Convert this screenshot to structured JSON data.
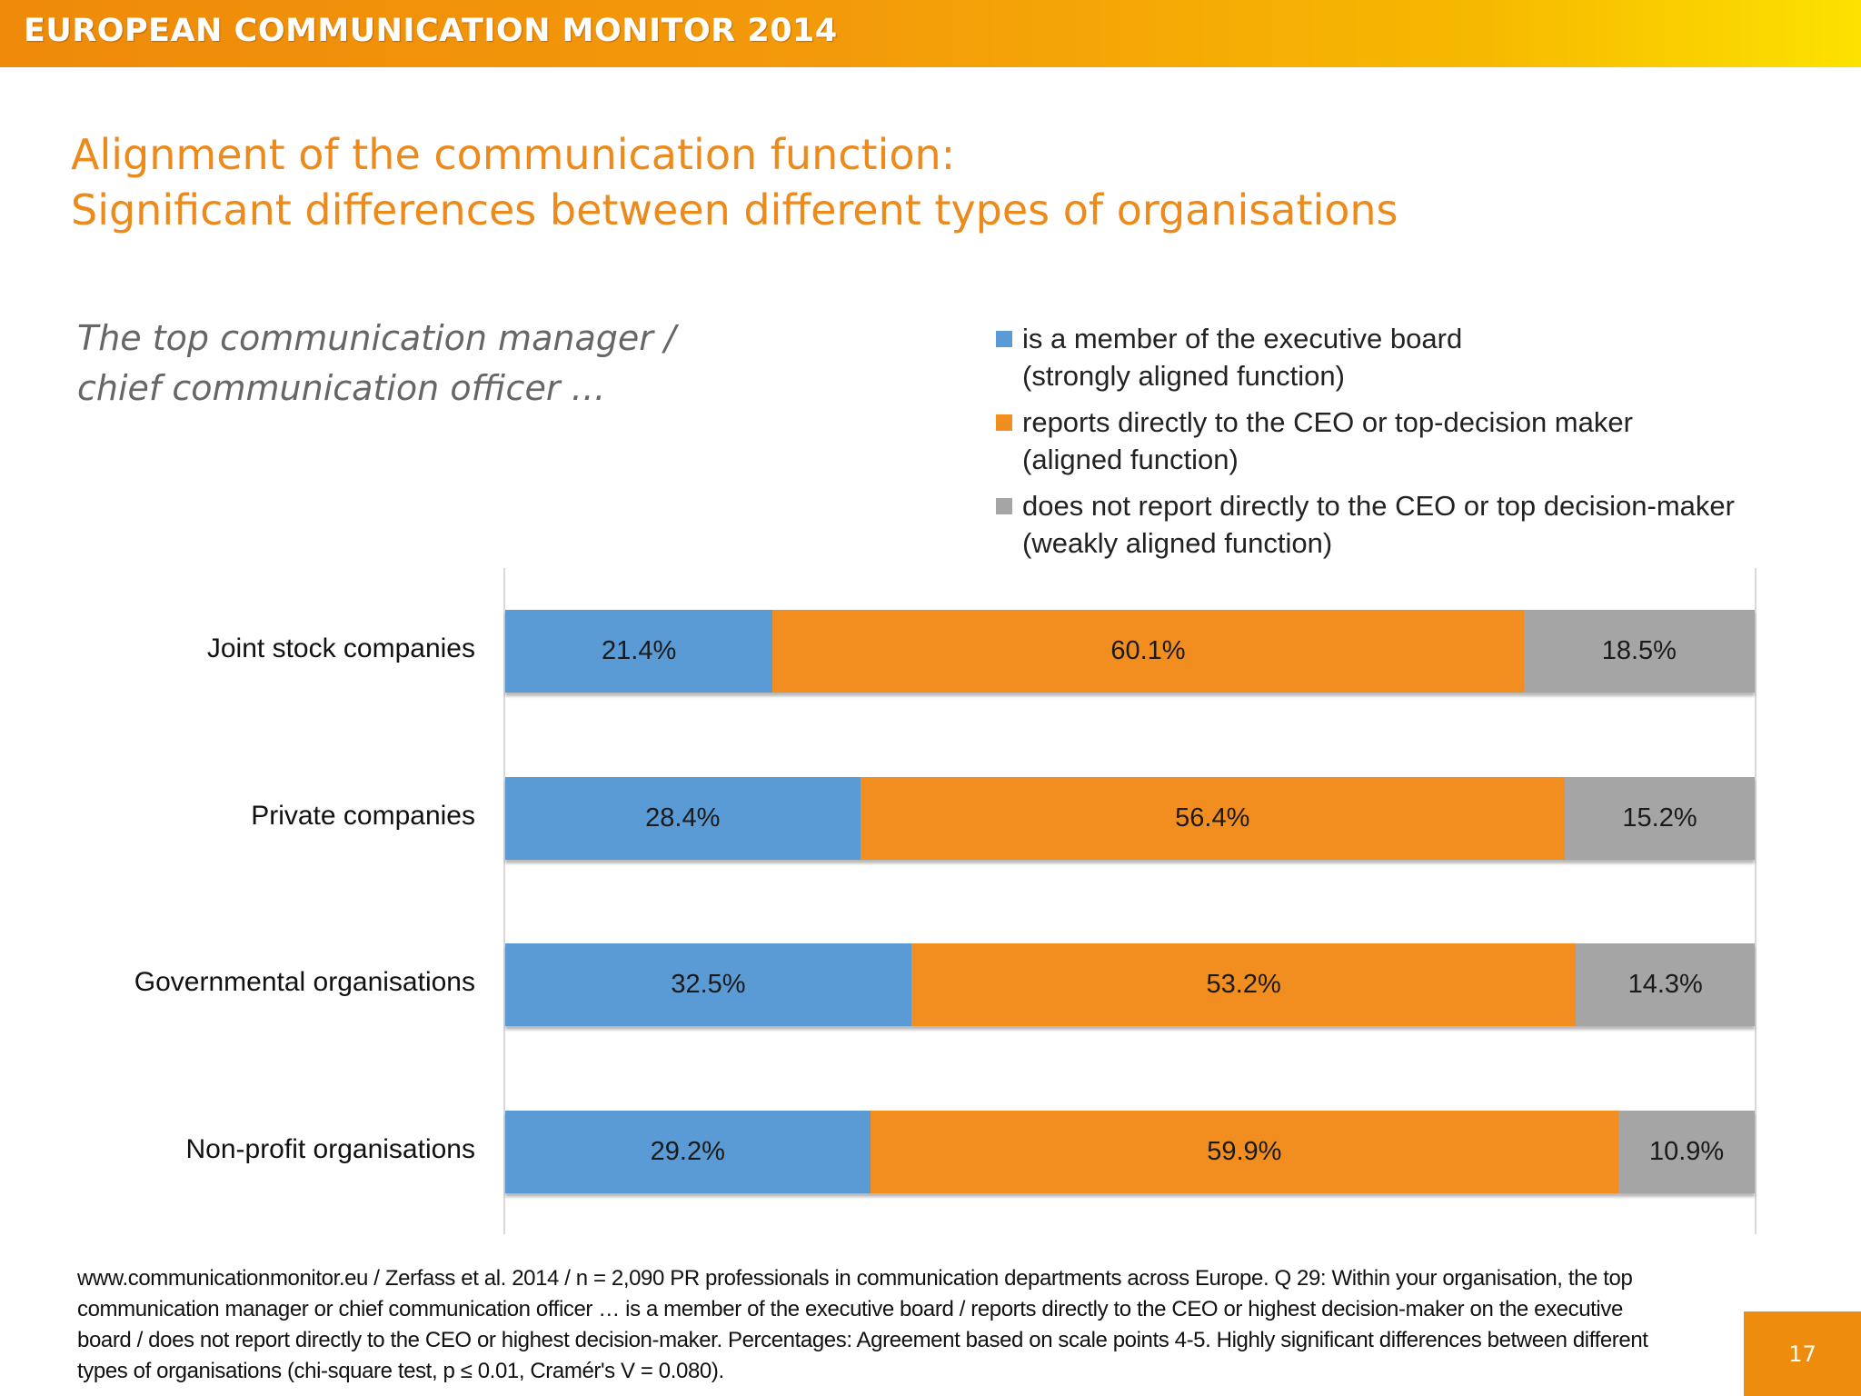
{
  "header": {
    "title": "EUROPEAN COMMUNICATION MONITOR 2014"
  },
  "slide": {
    "title_line1": "Alignment of the communication function:",
    "title_line2": "Significant differences between different types of organisations",
    "subtitle_line1": "The top communication manager /",
    "subtitle_line2": "chief communication officer …"
  },
  "colors": {
    "strong": "#5b9bd5",
    "aligned": "#f28e20",
    "weak": "#a5a5a5",
    "accent": "#ec8a1b"
  },
  "chart_data": {
    "type": "bar",
    "orientation": "horizontal",
    "stacked": true,
    "categories": [
      "Joint stock companies",
      "Private companies",
      "Governmental organisations",
      "Non-profit organisations"
    ],
    "series": [
      {
        "name": "is a member of the executive board\n(strongly aligned function)",
        "values": [
          21.4,
          28.4,
          32.5,
          29.2
        ],
        "labels": [
          "21.4%",
          "28.4%",
          "32.5%",
          "29.2%"
        ]
      },
      {
        "name": "reports directly to the CEO or top-decision maker\n(aligned function)",
        "values": [
          60.1,
          56.4,
          53.2,
          59.9
        ],
        "labels": [
          "60.1%",
          "56.4%",
          "53.2%",
          "59.9%"
        ]
      },
      {
        "name": "does not report directly to the CEO or top decision-maker\n(weakly aligned function)",
        "values": [
          18.5,
          15.2,
          14.3,
          10.9
        ],
        "labels": [
          "18.5%",
          "15.2%",
          "14.3%",
          "10.9%"
        ]
      }
    ],
    "xlim": [
      0,
      100
    ],
    "legend": "top-right",
    "grid": false
  },
  "footnote": "www.communicationmonitor.eu / Zerfass et al. 2014 / n = 2,090 PR professionals in communication departments across Europe. Q 29: Within your organisation, the top communication manager or chief communication officer … is a member of the executive board / reports directly to the CEO or highest decision-maker on the executive board / does not report directly to the CEO or highest decision-maker. Percentages: Agreement based on scale points 4-5. Highly significant differences between different types of organisations (chi-square test, p ≤ 0.01, Cramér's V = 0.080).",
  "page_number": "17"
}
